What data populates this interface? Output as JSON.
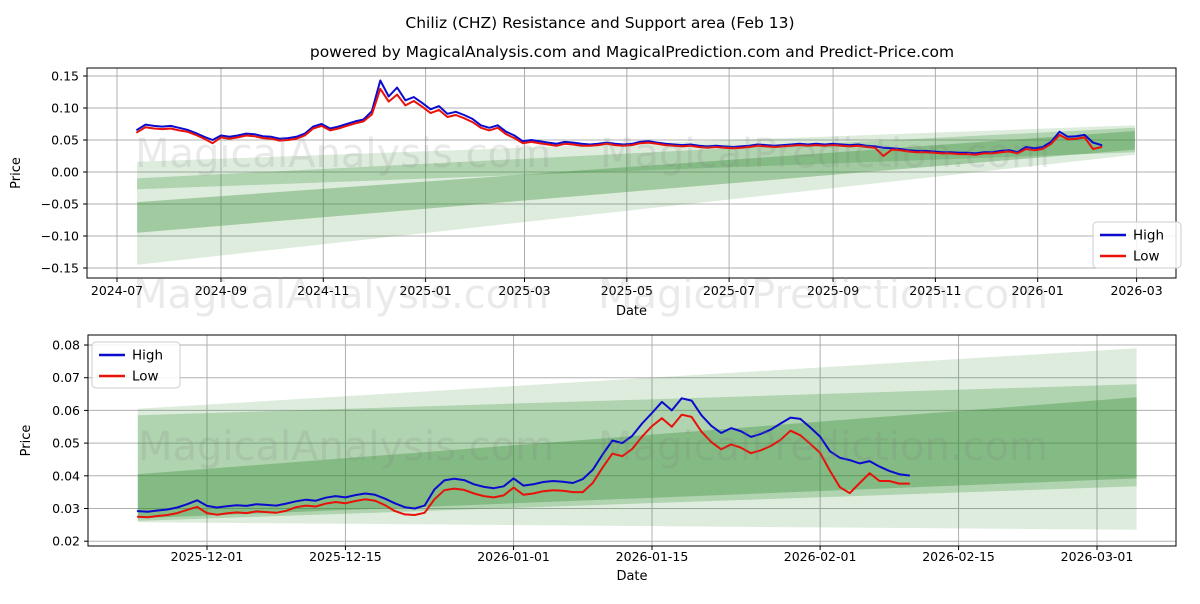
{
  "figure": {
    "title": "Chiliz (CHZ) Resistance and Support area (Feb 13)",
    "subtitle": "powered by MagicalAnalysis.com and MagicalPrediction.com and Predict-Price.com",
    "watermark_left": "MagicalAnalysis.com",
    "watermark_right": "MagicalPrediction.com",
    "colors": {
      "high": "#0b0bcf",
      "low": "#e8120a",
      "band": "#2e8b2e",
      "grid": "#b0b0b0",
      "frame": "#000000"
    }
  },
  "chart_data": [
    {
      "type": "line",
      "name": "full-history",
      "x_axis": {
        "label": "Date",
        "ref_date": "2024-07-01",
        "range_days": [
          -18,
          631
        ],
        "ticks": [
          {
            "label": "2024-07",
            "day": 0
          },
          {
            "label": "2024-09",
            "day": 62
          },
          {
            "label": "2024-11",
            "day": 123
          },
          {
            "label": "2025-01",
            "day": 184
          },
          {
            "label": "2025-03",
            "day": 243
          },
          {
            "label": "2025-05",
            "day": 304
          },
          {
            "label": "2025-07",
            "day": 365
          },
          {
            "label": "2025-09",
            "day": 427
          },
          {
            "label": "2025-11",
            "day": 488
          },
          {
            "label": "2026-01",
            "day": 549
          },
          {
            "label": "2026-03",
            "day": 608
          }
        ]
      },
      "y_axis": {
        "label": "Price",
        "decimals": 2,
        "ticks": [
          0.15,
          0.1,
          0.05,
          0.0,
          -0.05,
          -0.1,
          -0.15
        ]
      },
      "legend": {
        "location": "lower right",
        "entries": [
          {
            "label": "High",
            "color_key": "high"
          },
          {
            "label": "Low",
            "color_key": "low"
          }
        ]
      },
      "bands": [
        {
          "shade": "light",
          "day0": 12,
          "day1": 607,
          "top": [
            0.016,
            0.073
          ],
          "bottom": [
            -0.145,
            0.027
          ]
        },
        {
          "shade": "medium",
          "day0": 12,
          "day1": 607,
          "top": [
            -0.01,
            0.069
          ],
          "bottom": [
            -0.027,
            0.031
          ]
        },
        {
          "shade": "dark",
          "day0": 12,
          "day1": 607,
          "top": [
            -0.047,
            0.064
          ],
          "bottom": [
            -0.095,
            0.035
          ]
        }
      ],
      "series": [
        {
          "name": "High",
          "color_key": "high",
          "start_day": 12,
          "step_days": 5,
          "values": [
            0.066,
            0.074,
            0.072,
            0.071,
            0.072,
            0.069,
            0.066,
            0.061,
            0.055,
            0.05,
            0.057,
            0.055,
            0.057,
            0.06,
            0.059,
            0.056,
            0.055,
            0.052,
            0.053,
            0.055,
            0.06,
            0.071,
            0.075,
            0.068,
            0.071,
            0.075,
            0.079,
            0.082,
            0.095,
            0.143,
            0.118,
            0.132,
            0.112,
            0.117,
            0.108,
            0.098,
            0.103,
            0.091,
            0.094,
            0.089,
            0.083,
            0.073,
            0.069,
            0.073,
            0.063,
            0.057,
            0.048,
            0.05,
            0.048,
            0.046,
            0.044,
            0.047,
            0.046,
            0.044,
            0.043,
            0.044,
            0.046,
            0.044,
            0.043,
            0.044,
            0.047,
            0.048,
            0.046,
            0.044,
            0.043,
            0.042,
            0.043,
            0.041,
            0.04,
            0.041,
            0.04,
            0.039,
            0.04,
            0.041,
            0.043,
            0.042,
            0.041,
            0.042,
            0.043,
            0.044,
            0.043,
            0.044,
            0.043,
            0.044,
            0.043,
            0.042,
            0.043,
            0.041,
            0.04,
            0.038,
            0.037,
            0.036,
            0.034,
            0.033,
            0.033,
            0.032,
            0.031,
            0.031,
            0.03,
            0.03,
            0.029,
            0.031,
            0.031,
            0.033,
            0.034,
            0.031,
            0.039,
            0.037,
            0.039,
            0.047,
            0.063,
            0.055,
            0.056,
            0.058,
            0.046,
            0.042
          ]
        },
        {
          "name": "Low",
          "color_key": "low",
          "start_day": 12,
          "step_days": 5,
          "values": [
            0.062,
            0.07,
            0.068,
            0.067,
            0.068,
            0.065,
            0.063,
            0.058,
            0.052,
            0.045,
            0.054,
            0.052,
            0.054,
            0.057,
            0.056,
            0.053,
            0.052,
            0.049,
            0.05,
            0.052,
            0.057,
            0.068,
            0.072,
            0.065,
            0.068,
            0.072,
            0.076,
            0.079,
            0.09,
            0.13,
            0.11,
            0.121,
            0.104,
            0.111,
            0.102,
            0.092,
            0.097,
            0.086,
            0.089,
            0.084,
            0.078,
            0.069,
            0.065,
            0.069,
            0.059,
            0.053,
            0.045,
            0.047,
            0.045,
            0.043,
            0.041,
            0.044,
            0.043,
            0.041,
            0.041,
            0.042,
            0.044,
            0.042,
            0.041,
            0.042,
            0.045,
            0.046,
            0.044,
            0.042,
            0.041,
            0.04,
            0.041,
            0.039,
            0.038,
            0.039,
            0.038,
            0.037,
            0.038,
            0.039,
            0.041,
            0.04,
            0.039,
            0.04,
            0.041,
            0.042,
            0.041,
            0.042,
            0.041,
            0.042,
            0.041,
            0.04,
            0.041,
            0.039,
            0.038,
            0.025,
            0.035,
            0.034,
            0.032,
            0.031,
            0.031,
            0.03,
            0.029,
            0.029,
            0.028,
            0.028,
            0.027,
            0.029,
            0.029,
            0.031,
            0.032,
            0.029,
            0.036,
            0.034,
            0.036,
            0.044,
            0.058,
            0.051,
            0.052,
            0.054,
            0.036,
            0.039
          ]
        }
      ]
    },
    {
      "type": "line",
      "name": "forecast-zoom",
      "x_axis": {
        "label": "Date",
        "ref_date": "2025-12-01",
        "range_days": [
          -12,
          98
        ],
        "ticks": [
          {
            "label": "2025-12-01",
            "day": 0
          },
          {
            "label": "2025-12-15",
            "day": 14
          },
          {
            "label": "2026-01-01",
            "day": 31
          },
          {
            "label": "2026-01-15",
            "day": 45
          },
          {
            "label": "2026-02-01",
            "day": 62
          },
          {
            "label": "2026-02-15",
            "day": 76
          },
          {
            "label": "2026-03-01",
            "day": 90
          }
        ]
      },
      "y_axis": {
        "label": "Price",
        "decimals": 2,
        "ticks": [
          0.08,
          0.07,
          0.06,
          0.05,
          0.04,
          0.03,
          0.02
        ]
      },
      "legend": {
        "location": "upper left",
        "entries": [
          {
            "label": "High",
            "color_key": "high"
          },
          {
            "label": "Low",
            "color_key": "low"
          }
        ]
      },
      "bands": [
        {
          "shade": "light",
          "day0": -7,
          "day1": 94,
          "top": [
            0.0605,
            0.079
          ],
          "bottom": [
            0.0258,
            0.0235
          ]
        },
        {
          "shade": "medium",
          "day0": -7,
          "day1": 94,
          "top": [
            0.0585,
            0.068
          ],
          "bottom": [
            0.0262,
            0.0368
          ]
        },
        {
          "shade": "dark",
          "day0": -7,
          "day1": 94,
          "top": [
            0.0405,
            0.064
          ],
          "bottom": [
            0.027,
            0.0392
          ]
        }
      ],
      "series": [
        {
          "name": "High",
          "color_key": "high",
          "start_day": -7,
          "step_days": 1,
          "values": [
            0.0292,
            0.029,
            0.0294,
            0.0297,
            0.0303,
            0.0313,
            0.0325,
            0.0308,
            0.0303,
            0.0307,
            0.031,
            0.0308,
            0.0313,
            0.0311,
            0.0309,
            0.0315,
            0.0322,
            0.0327,
            0.0324,
            0.0333,
            0.0338,
            0.0334,
            0.0341,
            0.0346,
            0.0342,
            0.033,
            0.0316,
            0.0304,
            0.03,
            0.0309,
            0.0358,
            0.0386,
            0.0391,
            0.0387,
            0.0374,
            0.0366,
            0.0362,
            0.0368,
            0.0392,
            0.037,
            0.0374,
            0.0381,
            0.0384,
            0.0382,
            0.0378,
            0.039,
            0.0418,
            0.0465,
            0.0508,
            0.05,
            0.0522,
            0.056,
            0.0592,
            0.0626,
            0.06,
            0.0637,
            0.063,
            0.0585,
            0.0553,
            0.0531,
            0.0546,
            0.0536,
            0.0519,
            0.0528,
            0.0541,
            0.056,
            0.0578,
            0.0574,
            0.0548,
            0.052,
            0.0475,
            0.0455,
            0.0448,
            0.0438,
            0.0445,
            0.0428,
            0.0415,
            0.0405,
            0.0401
          ]
        },
        {
          "name": "Low",
          "color_key": "low",
          "start_day": -7,
          "step_days": 1,
          "values": [
            0.0275,
            0.0273,
            0.0277,
            0.028,
            0.0286,
            0.0296,
            0.0305,
            0.0286,
            0.0281,
            0.0285,
            0.0288,
            0.0286,
            0.0291,
            0.0289,
            0.0287,
            0.0293,
            0.0304,
            0.0309,
            0.0306,
            0.0315,
            0.032,
            0.0316,
            0.0323,
            0.0328,
            0.0324,
            0.031,
            0.0292,
            0.0282,
            0.028,
            0.0287,
            0.0328,
            0.0356,
            0.0361,
            0.0357,
            0.0346,
            0.0338,
            0.0334,
            0.034,
            0.0364,
            0.0342,
            0.0346,
            0.0353,
            0.0356,
            0.0354,
            0.035,
            0.035,
            0.0378,
            0.0425,
            0.0468,
            0.046,
            0.0482,
            0.052,
            0.0552,
            0.0576,
            0.055,
            0.0587,
            0.058,
            0.0535,
            0.0503,
            0.0481,
            0.0496,
            0.0486,
            0.0469,
            0.0478,
            0.0491,
            0.051,
            0.0538,
            0.0524,
            0.0498,
            0.047,
            0.0415,
            0.0365,
            0.0347,
            0.0378,
            0.0408,
            0.0384,
            0.0384,
            0.0376,
            0.0376
          ]
        }
      ]
    }
  ]
}
